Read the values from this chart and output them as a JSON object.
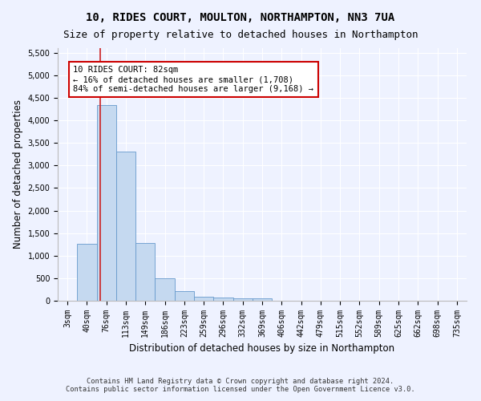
{
  "title_line1": "10, RIDES COURT, MOULTON, NORTHAMPTON, NN3 7UA",
  "title_line2": "Size of property relative to detached houses in Northampton",
  "xlabel": "Distribution of detached houses by size in Northampton",
  "ylabel": "Number of detached properties",
  "footnote": "Contains HM Land Registry data © Crown copyright and database right 2024.\nContains public sector information licensed under the Open Government Licence v3.0.",
  "bin_labels": [
    "3sqm",
    "40sqm",
    "76sqm",
    "113sqm",
    "149sqm",
    "186sqm",
    "223sqm",
    "259sqm",
    "296sqm",
    "332sqm",
    "369sqm",
    "406sqm",
    "442sqm",
    "479sqm",
    "515sqm",
    "552sqm",
    "589sqm",
    "625sqm",
    "662sqm",
    "698sqm",
    "735sqm"
  ],
  "bar_values": [
    0,
    1270,
    4330,
    3300,
    1280,
    490,
    220,
    90,
    70,
    60,
    50,
    0,
    0,
    0,
    0,
    0,
    0,
    0,
    0,
    0,
    0
  ],
  "bar_color": "#c5d9f0",
  "bar_edge_color": "#6699cc",
  "subject_line_color": "#cc2222",
  "subject_sqm": 82,
  "annotation_text": "10 RIDES COURT: 82sqm\n← 16% of detached houses are smaller (1,708)\n84% of semi-detached houses are larger (9,168) →",
  "annotation_box_color": "#ffffff",
  "annotation_box_edge_color": "#cc0000",
  "ylim": [
    0,
    5600
  ],
  "yticks": [
    0,
    500,
    1000,
    1500,
    2000,
    2500,
    3000,
    3500,
    4000,
    4500,
    5000,
    5500
  ],
  "background_color": "#eef2ff",
  "grid_color": "#ffffff",
  "title_fontsize": 10,
  "subtitle_fontsize": 9,
  "axis_label_fontsize": 8.5,
  "tick_fontsize": 7
}
